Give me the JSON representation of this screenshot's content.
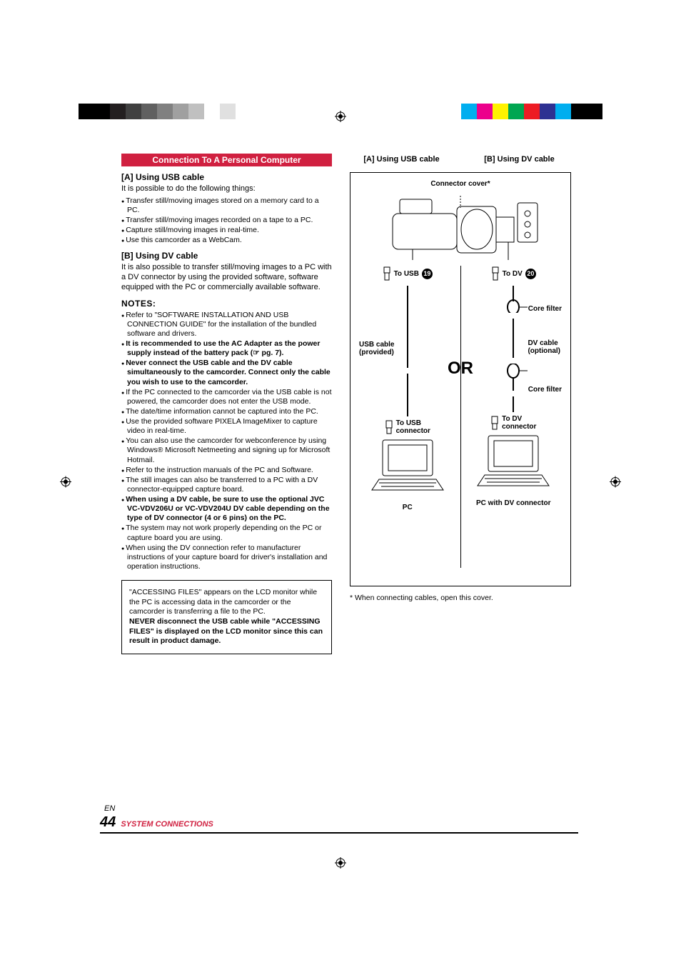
{
  "crop_marks": {
    "left_bars": [
      "#000000",
      "#000000",
      "#231f20",
      "#404040",
      "#606060",
      "#808080",
      "#a0a0a0",
      "#c0c0c0",
      "#ffffff",
      "#e0e0e0"
    ],
    "right_bars": [
      "#ffffff",
      "#00aeef",
      "#ec008c",
      "#fff200",
      "#00a651",
      "#ed1c24",
      "#2e3192",
      "#00aeef",
      "#000000",
      "#000000"
    ]
  },
  "header_bar": "Connection To A Personal Computer",
  "section_a_title": "[A] Using USB cable",
  "section_a_intro": "It is possible to do the following things:",
  "section_a_bullets": [
    "Transfer still/moving images stored on a memory card to a PC.",
    "Transfer still/moving images recorded on a tape to a PC.",
    "Capture still/moving images in real-time.",
    "Use this camcorder as a WebCam."
  ],
  "section_b_title": "[B] Using DV cable",
  "section_b_body": "It is also possible to transfer still/moving images to a PC with a DV connector by using the provided software, software equipped with the PC or commercially available software.",
  "notes_title": "NOTES:",
  "notes_bullets": [
    {
      "t": "Refer to \"SOFTWARE INSTALLATION AND USB CONNECTION GUIDE\" for the installation of the bundled software and drivers.",
      "b": false
    },
    {
      "t": "It is recommended to use the AC Adapter as the power supply instead of the battery pack (☞ pg. 7).",
      "b": true
    },
    {
      "t": "Never connect the USB cable and the DV cable simultaneously to the camcorder. Connect only the cable you wish to use to the camcorder.",
      "b": true
    },
    {
      "t": "If the PC connected to the camcorder via the USB cable is not powered, the camcorder does not enter the USB mode.",
      "b": false
    },
    {
      "t": "The date/time information cannot be captured into the PC.",
      "b": false
    },
    {
      "t": "Use the provided software PIXELA ImageMixer to capture video in real-time.",
      "b": false
    },
    {
      "t": "You can also use the camcorder for webconference by using Windows® Microsoft Netmeeting and signing up for Microsoft Hotmail.",
      "b": false
    },
    {
      "t": "Refer to the instruction manuals of the PC and Software.",
      "b": false
    },
    {
      "t": "The still images can also be transferred to a PC with a DV connector-equipped capture board.",
      "b": false
    },
    {
      "t": "When using a DV cable, be sure to use the optional JVC VC-VDV206U or VC-VDV204U DV cable depending on the type of DV connector (4 or 6 pins) on the PC.",
      "b": true
    },
    {
      "t": "The system may not work properly depending on the PC or capture board you are using.",
      "b": false
    },
    {
      "t": "When using the DV connection refer to manufacturer instructions of your capture board for driver's installation and operation instructions.",
      "b": false
    }
  ],
  "warning_box": {
    "line1": "\"ACCESSING FILES\" appears on the LCD monitor while the PC is accessing data in the camcorder or the camcorder is transferring a file to the PC.",
    "line2": "NEVER disconnect the USB cable while \"ACCESSING FILES\" is displayed on the LCD monitor since this can result in product damage."
  },
  "diagram": {
    "header_a": "[A] Using USB cable",
    "header_b": "[B] Using DV cable",
    "connector_cover": "Connector cover*",
    "to_usb": "To USB",
    "to_dv": "To DV",
    "usb_num": "19",
    "dv_num": "20",
    "core_filter": "Core filter",
    "usb_cable_line1": "USB cable",
    "usb_cable_line2": "(provided)",
    "dv_cable_line1": "DV cable",
    "dv_cable_line2": "(optional)",
    "or": "OR",
    "to_usb_connector_1": "To USB",
    "to_usb_connector_2": "connector",
    "to_dv_connector_1": "To DV",
    "to_dv_connector_2": "connector",
    "pc": "PC",
    "pc_dv": "PC with DV connector"
  },
  "footnote": "* When connecting cables, open this cover.",
  "footer": {
    "lang": "EN",
    "page_num": "44",
    "title": "SYSTEM CONNECTIONS"
  },
  "colors": {
    "brand_red": "#d02040",
    "text": "#000000",
    "bg": "#ffffff"
  }
}
